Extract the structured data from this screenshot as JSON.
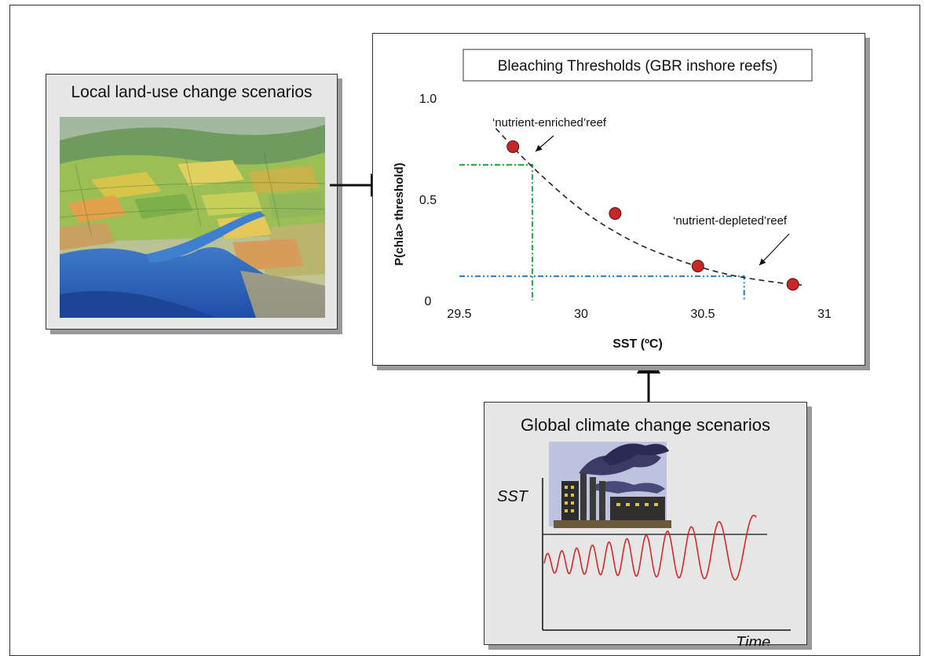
{
  "landuse": {
    "title": "Local land-use change scenarios"
  },
  "climate": {
    "title": "Global climate change scenarios",
    "y_label": "SST",
    "x_label": "Time"
  },
  "chart": {
    "title": "Bleaching Thresholds (GBR inshore reefs)",
    "xlabel": "SST (ºC)",
    "ylabel": "P(chla> threshold)",
    "annotations": {
      "enriched": "‘nutrient-enriched’reef",
      "depleted": "‘nutrient-depleted’reef"
    }
  },
  "chart_data": {
    "type": "scatter",
    "title": "Bleaching Thresholds (GBR inshore reefs)",
    "xlabel": "SST (ºC)",
    "ylabel": "P(chla> threshold)",
    "xlim": [
      29.5,
      31
    ],
    "ylim": [
      0,
      1.0
    ],
    "x_ticks": [
      "29.5",
      "30",
      "30.5",
      "31"
    ],
    "y_ticks": [
      "0",
      "0.5",
      "1.0"
    ],
    "points": {
      "x": [
        29.72,
        30.14,
        30.48,
        30.87
      ],
      "y": [
        0.76,
        0.43,
        0.17,
        0.08
      ]
    },
    "fit_curve": {
      "x": [
        29.65,
        29.8,
        30.0,
        30.2,
        30.4,
        30.6,
        30.8,
        30.92
      ],
      "y": [
        0.85,
        0.66,
        0.45,
        0.3,
        0.2,
        0.13,
        0.09,
        0.075
      ]
    },
    "thresholds": [
      {
        "name": "‘nutrient-enriched’reef",
        "x": 29.8,
        "y": 0.67,
        "color": "#29b24a"
      },
      {
        "name": "‘nutrient-depleted’reef",
        "x": 30.67,
        "y": 0.12,
        "color": "#2a86d4"
      }
    ],
    "marker_color": "#c62828",
    "grid": false,
    "legend": "none"
  }
}
